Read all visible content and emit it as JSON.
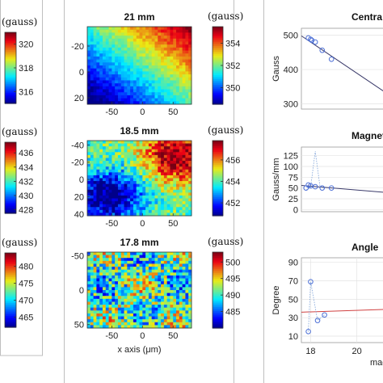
{
  "chart_data": {
    "heatmaps": [
      {
        "id": "map-21",
        "type": "heatmap",
        "title": "21 mm",
        "colorbar_unit": "(gauss)",
        "colorbar_ticks": [
          "354",
          "352",
          "350"
        ],
        "colorbar_ticks_values": [
          354,
          352,
          350
        ],
        "colorbar_range": [
          348.5,
          355.5
        ],
        "y_ticks": [
          "-20",
          "0",
          "20"
        ],
        "y_tick_values": [
          -20,
          0,
          20
        ],
        "y_range": [
          -35,
          25
        ],
        "x_ticks": [
          "-50",
          "0",
          "50"
        ],
        "x_tick_values": [
          -50,
          0,
          50
        ],
        "x_range": [
          -90,
          80
        ],
        "pattern": "diagonal gradient, high upper-right, low lower-left",
        "value_range": [
          348.5,
          355.5
        ]
      },
      {
        "id": "map-185",
        "type": "heatmap",
        "title": "18.5 mm",
        "colorbar_unit": "(gauss)",
        "colorbar_ticks": [
          "456",
          "454",
          "452"
        ],
        "colorbar_ticks_values": [
          456,
          454,
          452
        ],
        "colorbar_range": [
          450.8,
          457.8
        ],
        "y_ticks": [
          "-40",
          "-20",
          "0",
          "20",
          "40"
        ],
        "y_tick_values": [
          -40,
          -20,
          0,
          20,
          40
        ],
        "y_range": [
          -45,
          42
        ],
        "x_ticks": [
          "-50",
          "0",
          "50"
        ],
        "x_tick_values": [
          -50,
          0,
          50
        ],
        "x_range": [
          -90,
          80
        ],
        "pattern": "high upper-right, low blob lower-left",
        "value_range": [
          450.8,
          457.8
        ]
      },
      {
        "id": "map-178",
        "type": "heatmap",
        "title": "17.8 mm",
        "colorbar_unit": "(gauss)",
        "colorbar_ticks": [
          "500",
          "495",
          "490",
          "485"
        ],
        "colorbar_ticks_values": [
          500,
          495,
          490,
          485
        ],
        "colorbar_range": [
          480,
          503
        ],
        "y_ticks": [
          "-50",
          "0",
          "50"
        ],
        "y_tick_values": [
          -50,
          0,
          50
        ],
        "y_range": [
          -55,
          55
        ],
        "x_ticks": [
          "-50",
          "0",
          "50"
        ],
        "x_tick_values": [
          -50,
          0,
          50
        ],
        "x_range": [
          -90,
          80
        ],
        "xlabel": "x axis (μm)",
        "pattern": "noisy, mostly mid values",
        "value_range": [
          480,
          503
        ]
      }
    ],
    "left_colorbars": [
      {
        "id": "cb-left-1",
        "unit": "(gauss)",
        "ticks": [
          "320",
          "318",
          "316"
        ],
        "tick_values": [
          320,
          318,
          316
        ],
        "range": [
          315,
          321
        ]
      },
      {
        "id": "cb-left-2",
        "unit": "(gauss)",
        "ticks": [
          "436",
          "434",
          "432",
          "430",
          "428"
        ],
        "tick_values": [
          436,
          434,
          432,
          430,
          428
        ],
        "range": [
          427.5,
          437.5
        ]
      },
      {
        "id": "cb-left-3",
        "unit": "(gauss)",
        "ticks": [
          "480",
          "475",
          "470",
          "465"
        ],
        "tick_values": [
          480,
          475,
          470,
          465
        ],
        "range": [
          462,
          484
        ]
      }
    ],
    "line_charts": [
      {
        "id": "chart-central",
        "type": "scatter",
        "title": "Centra",
        "ylabel": "Gauss",
        "y_ticks": [
          "500",
          "400",
          "300"
        ],
        "y_tick_values": [
          500,
          400,
          300
        ],
        "ylim": [
          285,
          520
        ],
        "xlim": [
          17.6,
          21.2
        ],
        "points": [
          [
            17.9,
            492
          ],
          [
            18.0,
            488
          ],
          [
            18.05,
            485
          ],
          [
            18.2,
            480
          ],
          [
            18.5,
            456
          ],
          [
            18.9,
            430
          ]
        ],
        "fit_line": [
          [
            17.6,
            498
          ],
          [
            21.2,
            335
          ]
        ]
      },
      {
        "id": "chart-gradient",
        "type": "scatter",
        "title": "Magnet",
        "ylabel": "Gauss/mm",
        "y_ticks": [
          "125",
          "100",
          "75",
          "50",
          "25",
          "0"
        ],
        "y_tick_values": [
          125,
          100,
          75,
          50,
          25,
          0
        ],
        "ylim": [
          -5,
          145
        ],
        "xlim": [
          17.6,
          21.2
        ],
        "points": [
          [
            17.8,
            50
          ],
          [
            17.9,
            57
          ],
          [
            18.0,
            55
          ],
          [
            18.2,
            53
          ],
          [
            18.5,
            50
          ],
          [
            18.9,
            50
          ]
        ],
        "spike": [
          [
            17.8,
            45
          ],
          [
            18.0,
            52
          ],
          [
            18.2,
            135
          ],
          [
            18.4,
            55
          ],
          [
            18.6,
            49
          ]
        ],
        "fit_line": [
          [
            17.6,
            56
          ],
          [
            21.2,
            40
          ]
        ]
      },
      {
        "id": "chart-angle",
        "type": "scatter",
        "title": "Angle",
        "ylabel": "Degree",
        "y_ticks": [
          "90",
          "70",
          "50",
          "30",
          "10"
        ],
        "y_tick_values": [
          90,
          70,
          50,
          30,
          10
        ],
        "ylim": [
          3,
          95
        ],
        "x_ticks": [
          "18",
          "20"
        ],
        "x_tick_values": [
          18,
          20
        ],
        "xlim": [
          17.6,
          21.2
        ],
        "xlabel": "magn",
        "points": [
          [
            17.9,
            15
          ],
          [
            18.0,
            69
          ],
          [
            18.3,
            27
          ],
          [
            18.6,
            33
          ]
        ],
        "spike": [
          [
            17.9,
            15
          ],
          [
            18.0,
            69
          ],
          [
            18.15,
            48
          ],
          [
            18.3,
            27
          ],
          [
            18.6,
            33
          ]
        ],
        "fit_line": [
          [
            17.6,
            36
          ],
          [
            21.2,
            39
          ]
        ]
      }
    ]
  }
}
